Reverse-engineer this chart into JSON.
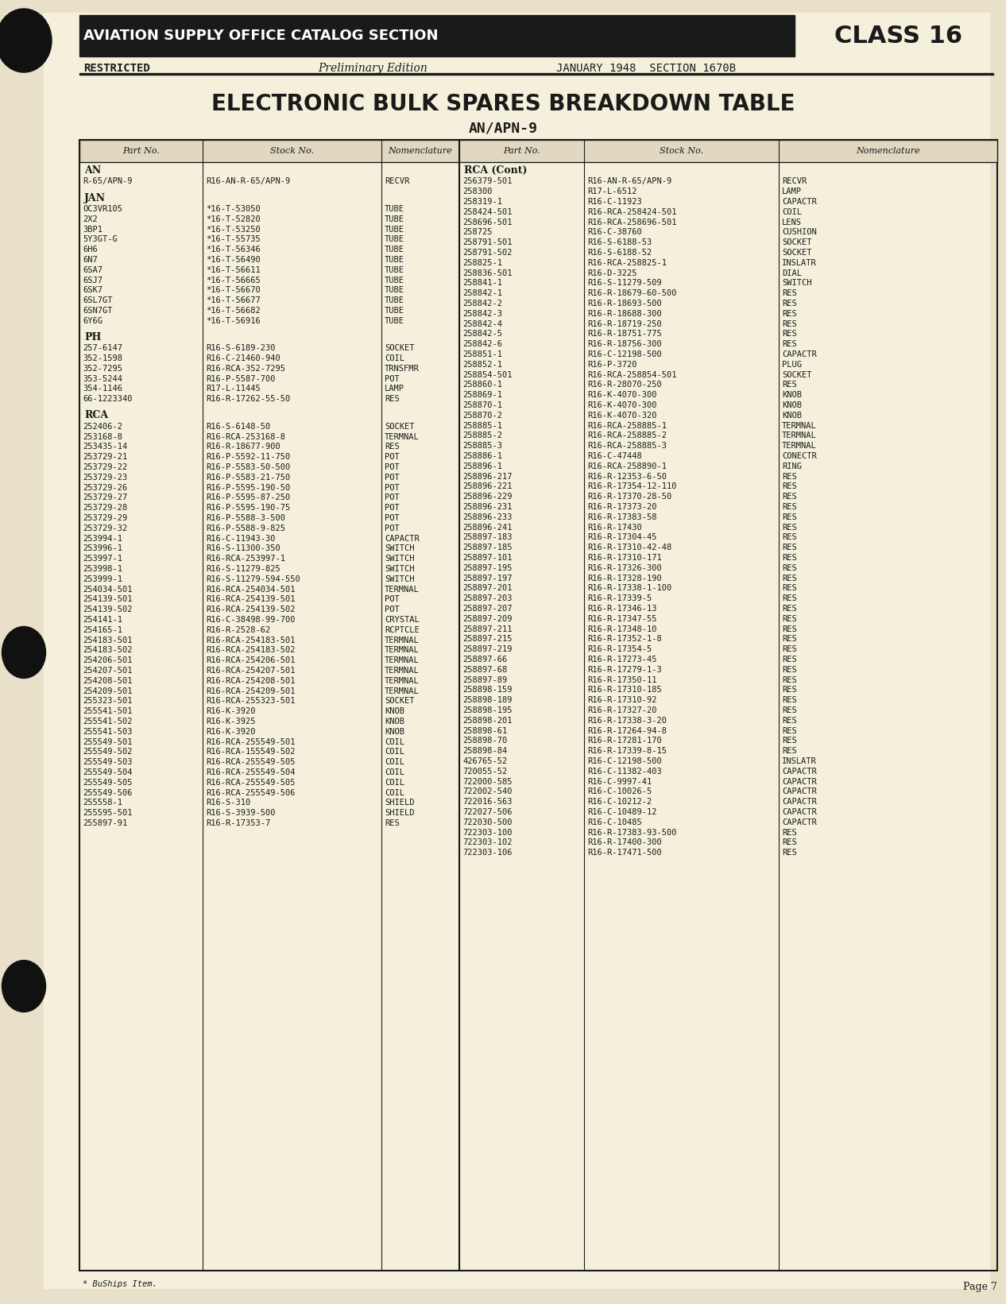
{
  "bg_color": "#f5f0dc",
  "header_bg": "#1a1a1a",
  "header_text_color": "#ffffff",
  "text_color": "#1a1a1a",
  "page_bg": "#e8e0c8",
  "header_label": "AVIATION SUPPLY OFFICE CATALOG SECTION",
  "class_label": "CLASS 16",
  "restricted": "RESTRICTED",
  "edition": "Preliminary Edition",
  "date_section": "JANUARY 1948  SECTION 1670B",
  "main_title": "ELECTRONIC BULK SPARES BREAKDOWN TABLE",
  "subtitle": "AN/APN-9",
  "col_headers": [
    "Part No.",
    "Stock No.",
    "Nomenclature",
    "Part No.",
    "Stock No.",
    "Nomenclature"
  ],
  "footnote": "* BuShips Item.",
  "page_num": "Page 7",
  "left_sections": [
    {
      "section": "AN",
      "rows": [
        [
          "R-65/APN-9",
          "R16-AN-R-65/APN-9",
          "RECVR"
        ]
      ]
    },
    {
      "section": "JAN",
      "rows": [
        [
          "OC3VR105",
          "*16-T-53050",
          "TUBE"
        ],
        [
          "2X2",
          "*16-T-52820",
          "TUBE"
        ],
        [
          "3BP1",
          "*16-T-53250",
          "TUBE"
        ],
        [
          "5Y3GT-G",
          "*16-T-55735",
          "TUBE"
        ],
        [
          "6H6",
          "*16-T-56346",
          "TUBE"
        ],
        [
          "6N7",
          "*16-T-56490",
          "TUBE"
        ],
        [
          "6SA7",
          "*16-T-56611",
          "TUBE"
        ],
        [
          "6SJ7",
          "*16-T-56665",
          "TUBE"
        ],
        [
          "6SK7",
          "*16-T-56670",
          "TUBE"
        ],
        [
          "6SL7GT",
          "*16-T-56677",
          "TUBE"
        ],
        [
          "6SN7GT",
          "*16-T-56682",
          "TUBE"
        ],
        [
          "6Y6G",
          "*16-T-56916",
          "TUBE"
        ]
      ]
    },
    {
      "section": "PH",
      "rows": [
        [
          "257-6147",
          "R16-S-6189-230",
          "SOCKET"
        ],
        [
          "352-1598",
          "R16-C-21460-940",
          "COIL"
        ],
        [
          "352-7295",
          "R16-RCA-352-7295",
          "TRNSFMR"
        ],
        [
          "353-5244",
          "R16-P-5587-700",
          "POT"
        ],
        [
          "354-1146",
          "R17-L-11445",
          "LAMP"
        ],
        [
          "66-1223340",
          "R16-R-17262-55-50",
          "RES"
        ]
      ]
    },
    {
      "section": "RCA",
      "rows": [
        [
          "252406-2",
          "R16-S-6148-50",
          "SOCKET"
        ],
        [
          "253168-8",
          "R16-RCA-253168-8",
          "TERMNAL"
        ],
        [
          "253435-14",
          "R16-R-18677-900",
          "RES"
        ],
        [
          "253729-21",
          "R16-P-5592-11-750",
          "POT"
        ],
        [
          "253729-22",
          "R16-P-5583-50-500",
          "POT"
        ],
        [
          "253729-23",
          "R16-P-5583-21-750",
          "POT"
        ],
        [
          "253729-26",
          "R16-P-5595-190-50",
          "POT"
        ],
        [
          "253729-27",
          "R16-P-5595-87-250",
          "POT"
        ],
        [
          "253729-28",
          "R16-P-5595-190-75",
          "POT"
        ],
        [
          "253729-29",
          "R16-P-5588-3-500",
          "POT"
        ],
        [
          "253729-32",
          "R16-P-5588-9-825",
          "POT"
        ],
        [
          "253994-1",
          "R16-C-11943-30",
          "CAPACTR"
        ],
        [
          "253996-1",
          "R16-S-11300-350",
          "SWITCH"
        ],
        [
          "253997-1",
          "R16-RCA-253997-1",
          "SWITCH"
        ],
        [
          "253998-1",
          "R16-S-11279-825",
          "SWITCH"
        ],
        [
          "253999-1",
          "R16-S-11279-594-550",
          "SWITCH"
        ],
        [
          "254034-501",
          "R16-RCA-254034-501",
          "TERMNAL"
        ],
        [
          "254139-501",
          "R16-RCA-254139-501",
          "POT"
        ],
        [
          "254139-502",
          "R16-RCA-254139-502",
          "POT"
        ],
        [
          "254141-1",
          "R16-C-38498-99-700",
          "CRYSTAL"
        ],
        [
          "254165-1",
          "R16-R-2528-62",
          "RCPTCLE"
        ],
        [
          "254183-501",
          "R16-RCA-254183-501",
          "TERMNAL"
        ],
        [
          "254183-502",
          "R16-RCA-254183-502",
          "TERMNAL"
        ],
        [
          "254206-501",
          "R16-RCA-254206-501",
          "TERMNAL"
        ],
        [
          "254207-501",
          "R16-RCA-254207-501",
          "TERMNAL"
        ],
        [
          "254208-501",
          "R16-RCA-254208-501",
          "TERMNAL"
        ],
        [
          "254209-501",
          "R16-RCA-254209-501",
          "TERMNAL"
        ],
        [
          "255323-501",
          "R16-RCA-255323-501",
          "SOCKET"
        ],
        [
          "255541-501",
          "R16-K-3920",
          "KNOB"
        ],
        [
          "255541-502",
          "R16-K-3925",
          "KNOB"
        ],
        [
          "255541-503",
          "R16-K-3920",
          "KNOB"
        ],
        [
          "255549-501",
          "R16-RCA-255549-501",
          "COIL"
        ],
        [
          "255549-502",
          "R16-RCA-155549-502",
          "COIL"
        ],
        [
          "255549-503",
          "R16-RCA-255549-505",
          "COIL"
        ],
        [
          "255549-504",
          "R16-RCA-255549-504",
          "COIL"
        ],
        [
          "255549-505",
          "R16-RCA-255549-505",
          "COIL"
        ],
        [
          "255549-506",
          "R16-RCA-255549-506",
          "COIL"
        ],
        [
          "255558-1",
          "R16-S-310",
          "SHIELD"
        ],
        [
          "255595-501",
          "R16-S-3939-500",
          "SHIELD"
        ],
        [
          "255897-91",
          "R16-R-17353-7",
          "RES"
        ]
      ]
    }
  ],
  "right_sections": [
    {
      "section": "RCA (Cont)",
      "rows": [
        [
          "256379-501",
          "R16-AN-R-65/APN-9",
          "RECVR"
        ],
        [
          "258300",
          "R17-L-6512",
          "LAMP"
        ],
        [
          "258319-1",
          "R16-C-11923",
          "CAPACTR"
        ],
        [
          "258424-501",
          "R16-RCA-258424-501",
          "COIL"
        ],
        [
          "258696-501",
          "R16-RCA-258696-501",
          "LENS"
        ],
        [
          "258725",
          "R16-C-38760",
          "CUSHION"
        ],
        [
          "258791-501",
          "R16-S-6188-53",
          "SOCKET"
        ],
        [
          "258791-502",
          "R16-S-6188-52",
          "SOCKET"
        ],
        [
          "258825-1",
          "R16-RCA-258825-1",
          "INSLATR"
        ],
        [
          "258836-501",
          "R16-D-3225",
          "DIAL"
        ],
        [
          "258841-1",
          "R16-S-11279-509",
          "SWITCH"
        ],
        [
          "258842-1",
          "R16-R-18679-60-500",
          "RES"
        ],
        [
          "258842-2",
          "R16-R-18693-500",
          "RES"
        ],
        [
          "258842-3",
          "R16-R-18688-300",
          "RES"
        ],
        [
          "258842-4",
          "R16-R-18719-250",
          "RES"
        ],
        [
          "258842-5",
          "R16-R-18751-775",
          "RES"
        ],
        [
          "258842-6",
          "R16-R-18756-300",
          "RES"
        ],
        [
          "258851-1",
          "R16-C-12198-500",
          "CAPACTR"
        ],
        [
          "258852-1",
          "R16-P-3720",
          "PLUG"
        ],
        [
          "258854-501",
          "R16-RCA-258854-501",
          "SOCKET"
        ],
        [
          "258860-1",
          "R16-R-28070-250",
          "RES"
        ],
        [
          "258869-1",
          "R16-K-4070-300",
          "KNOB"
        ],
        [
          "258870-1",
          "R16-K-4070-300",
          "KNOB"
        ],
        [
          "258870-2",
          "R16-K-4070-320",
          "KNOB"
        ],
        [
          "258885-1",
          "R16-RCA-258885-1",
          "TERMNAL"
        ],
        [
          "258885-2",
          "R16-RCA-258885-2",
          "TERMNAL"
        ],
        [
          "258885-3",
          "R16-RCA-258885-3",
          "TERMNAL"
        ],
        [
          "258886-1",
          "R16-C-47448",
          "CONECTR"
        ],
        [
          "258896-1",
          "R16-RCA-258890-1",
          "RING"
        ],
        [
          "258896-217",
          "R16-R-12353-6-50",
          "RES"
        ],
        [
          "258896-221",
          "R16-R-17354-12-110",
          "RES"
        ],
        [
          "258896-229",
          "R16-R-17370-28-50",
          "RES"
        ],
        [
          "258896-231",
          "R16-R-17373-20",
          "RES"
        ],
        [
          "258896-233",
          "R16-R-17383-58",
          "RES"
        ],
        [
          "258896-241",
          "R16-R-17430",
          "RES"
        ],
        [
          "258897-183",
          "R16-R-17304-45",
          "RES"
        ],
        [
          "258897-185",
          "R16-R-17310-42-48",
          "RES"
        ],
        [
          "258897-101",
          "R16-R-17310-171",
          "RES"
        ],
        [
          "258897-195",
          "R16-R-17326-300",
          "RES"
        ],
        [
          "258897-197",
          "R16-R-17328-190",
          "RES"
        ],
        [
          "258897-201",
          "R16-R-17338-1-100",
          "RES"
        ],
        [
          "258897-203",
          "R16-R-17339-5",
          "RES"
        ],
        [
          "258897-207",
          "R16-R-17346-13",
          "RES"
        ],
        [
          "258897-209",
          "R16-R-17347-55",
          "RES"
        ],
        [
          "258897-211",
          "R16-R-17348-10",
          "RES"
        ],
        [
          "258897-215",
          "R16-R-17352-1-8",
          "RES"
        ],
        [
          "258897-219",
          "R16-R-17354-5",
          "RES"
        ],
        [
          "258897-66",
          "R16-R-17273-45",
          "RES"
        ],
        [
          "258897-68",
          "R16-R-17279-1-3",
          "RES"
        ],
        [
          "258897-89",
          "R16-R-17350-11",
          "RES"
        ],
        [
          "258898-159",
          "R16-R-17310-185",
          "RES"
        ],
        [
          "258898-189",
          "R16-R-17310-92",
          "RES"
        ],
        [
          "258898-195",
          "R16-R-17327-20",
          "RES"
        ],
        [
          "258898-201",
          "R16-R-17338-3-20",
          "RES"
        ],
        [
          "258898-61",
          "R16-R-17264-94-8",
          "RES"
        ],
        [
          "258898-70",
          "R16-R-17281-170",
          "RES"
        ],
        [
          "258898-84",
          "R16-R-17339-8-15",
          "RES"
        ],
        [
          "426765-52",
          "R16-C-12198-500",
          "INSLATR"
        ],
        [
          "720055-52",
          "R16-C-11382-403",
          "CAPACTR"
        ],
        [
          "722000-585",
          "R16-C-9997-41",
          "CAPACTR"
        ],
        [
          "722002-540",
          "R16-C-10026-5",
          "CAPACTR"
        ],
        [
          "722016-563",
          "R16-C-10212-2",
          "CAPACTR"
        ],
        [
          "722027-506",
          "R16-C-10489-12",
          "CAPACTR"
        ],
        [
          "722030-500",
          "R16-C-10485",
          "CAPACTR"
        ],
        [
          "722303-100",
          "R16-R-17383-93-500",
          "RES"
        ],
        [
          "722303-102",
          "R16-R-17400-300",
          "RES"
        ],
        [
          "722303-106",
          "R16-R-17471-500",
          "RES"
        ]
      ]
    }
  ]
}
